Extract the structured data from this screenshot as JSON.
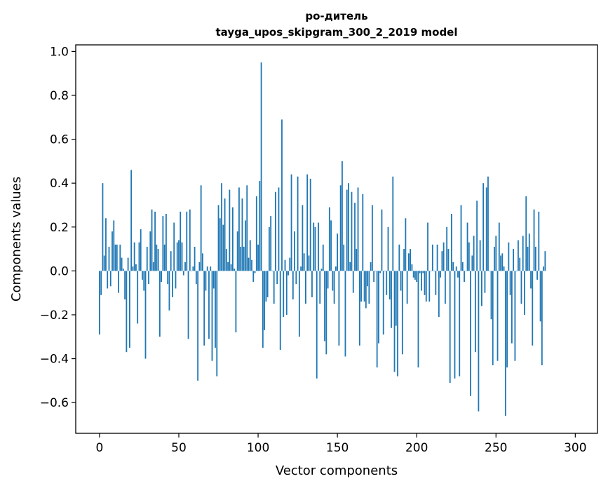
{
  "chart_data": {
    "type": "bar",
    "title_line1": "ро-дитель",
    "title_line2": "tayga_upos_skipgram_300_2_2019 model",
    "xlabel": "Vector components",
    "ylabel": "Components values",
    "xlim": [
      -15,
      314
    ],
    "ylim": [
      -0.74,
      1.03
    ],
    "xticks": [
      0,
      50,
      100,
      150,
      200,
      250,
      300
    ],
    "yticks": [
      -0.6,
      -0.4,
      -0.2,
      0.0,
      0.2,
      0.4,
      0.6,
      0.8,
      1.0
    ],
    "ytick_labels": [
      "−0.6",
      "−0.4",
      "−0.2",
      "0.0",
      "0.2",
      "0.4",
      "0.6",
      "0.8",
      "1.0"
    ],
    "bar_color": "#1f77b4",
    "grid": false,
    "values": [
      -0.29,
      -0.11,
      0.4,
      0.07,
      0.24,
      -0.08,
      0.11,
      -0.07,
      0.18,
      0.23,
      0.12,
      0.12,
      -0.1,
      0.12,
      0.06,
      0.01,
      -0.13,
      -0.37,
      0.06,
      -0.35,
      0.46,
      0.02,
      0.13,
      0.03,
      -0.24,
      0.13,
      0.19,
      -0.04,
      -0.09,
      -0.4,
      0.11,
      -0.06,
      0.18,
      0.28,
      0.04,
      0.27,
      0.12,
      0.1,
      -0.3,
      -0.05,
      0.25,
      0.12,
      0.26,
      -0.06,
      -0.18,
      0.09,
      -0.12,
      0.22,
      -0.08,
      0.13,
      0.14,
      0.27,
      0.13,
      -0.02,
      0.04,
      0.27,
      -0.31,
      0.28,
      0.0,
      0.02,
      0.11,
      -0.06,
      -0.5,
      0.04,
      0.39,
      0.08,
      -0.34,
      -0.09,
      0.02,
      -0.31,
      0.02,
      -0.41,
      -0.08,
      -0.35,
      -0.48,
      0.3,
      0.24,
      0.4,
      0.21,
      0.33,
      0.1,
      0.04,
      0.37,
      0.03,
      0.29,
      0.01,
      -0.28,
      0.18,
      0.38,
      0.11,
      0.33,
      0.11,
      0.23,
      0.39,
      0.06,
      0.14,
      0.05,
      -0.05,
      -0.01,
      0.34,
      0.12,
      0.41,
      0.95,
      -0.35,
      -0.27,
      -0.14,
      -0.12,
      0.2,
      0.25,
      0.0,
      -0.15,
      0.36,
      -0.06,
      0.38,
      -0.36,
      0.69,
      -0.21,
      0.05,
      -0.2,
      -0.02,
      0.06,
      0.44,
      -0.13,
      0.18,
      -0.06,
      0.43,
      -0.3,
      0.02,
      0.3,
      0.08,
      -0.15,
      0.44,
      0.07,
      0.42,
      -0.12,
      0.22,
      0.2,
      -0.49,
      0.22,
      -0.15,
      0.01,
      0.12,
      -0.32,
      -0.38,
      -0.08,
      0.29,
      0.23,
      -0.09,
      -0.15,
      0.02,
      0.17,
      -0.34,
      0.39,
      0.5,
      0.12,
      -0.39,
      0.37,
      0.4,
      0.04,
      0.36,
      -0.1,
      0.31,
      0.1,
      0.38,
      -0.34,
      -0.14,
      0.35,
      -0.14,
      -0.17,
      -0.07,
      -0.15,
      0.04,
      0.3,
      -0.05,
      0.0,
      -0.44,
      -0.33,
      -0.01,
      0.28,
      -0.29,
      0.0,
      -0.11,
      0.2,
      -0.13,
      -0.26,
      0.43,
      -0.46,
      -0.25,
      -0.48,
      0.12,
      -0.09,
      -0.38,
      0.1,
      0.24,
      -0.15,
      0.08,
      0.1,
      0.03,
      -0.03,
      -0.04,
      -0.05,
      -0.44,
      -0.01,
      -0.09,
      -0.01,
      -0.11,
      -0.14,
      0.22,
      -0.14,
      0.0,
      0.12,
      0.0,
      -0.11,
      0.12,
      -0.21,
      -0.03,
      0.09,
      0.13,
      -0.15,
      0.2,
      0.1,
      -0.51,
      0.26,
      0.04,
      -0.49,
      0.02,
      -0.03,
      -0.48,
      0.3,
      0.04,
      -0.05,
      0.0,
      0.22,
      0.13,
      -0.57,
      0.07,
      0.16,
      -0.37,
      0.32,
      -0.64,
      0.14,
      -0.16,
      0.4,
      -0.1,
      0.38,
      0.43,
      0.0,
      -0.22,
      -0.43,
      0.11,
      0.16,
      -0.41,
      0.22,
      0.07,
      0.08,
      0.02,
      -0.66,
      -0.44,
      0.13,
      -0.11,
      -0.33,
      0.1,
      -0.41,
      0.0,
      0.14,
      0.06,
      -0.15,
      0.16,
      -0.2,
      0.34,
      0.11,
      0.17,
      -0.08,
      -0.34,
      0.28,
      0.11,
      -0.04,
      0.27,
      -0.23,
      -0.43,
      0.02,
      0.09
    ]
  }
}
